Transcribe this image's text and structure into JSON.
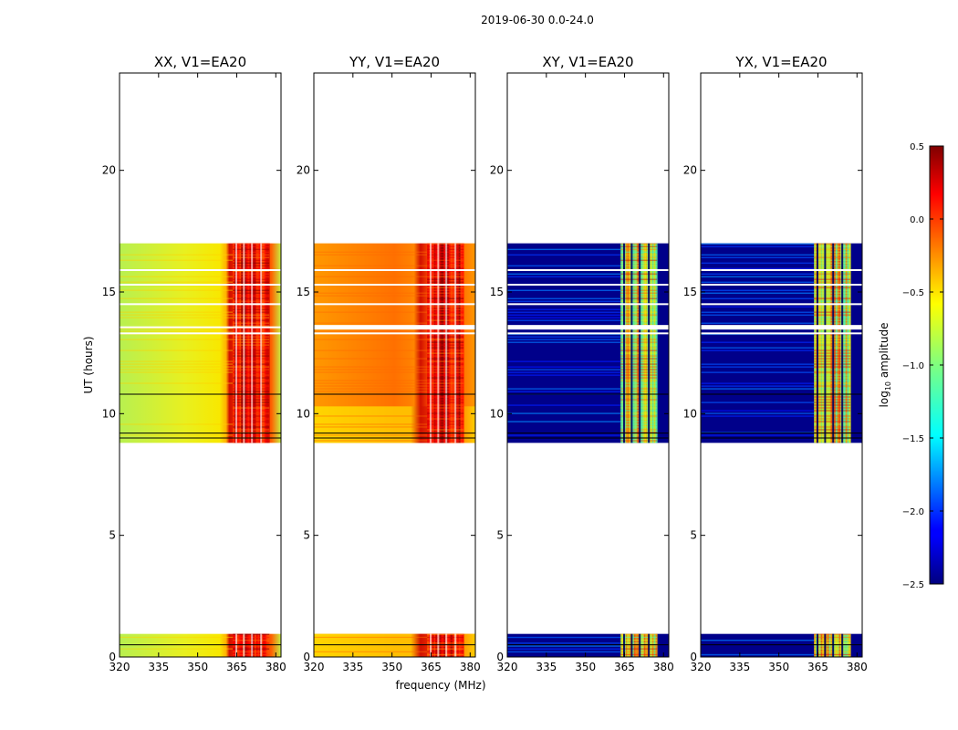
{
  "figure": {
    "suptitle": "2019-06-30 0.0-24.0"
  },
  "chart_data": {
    "type": "heatmap",
    "xlabel": "frequency (MHz)",
    "ylabel": "UT (hours)",
    "xlim": [
      320,
      382
    ],
    "ylim": [
      0,
      24
    ],
    "x_ticks": [
      "320",
      "335",
      "350",
      "365",
      "380"
    ],
    "y_ticks": [
      "0",
      "5",
      "10",
      "15",
      "20"
    ],
    "panels": [
      {
        "title": "XX, V1=EA20",
        "mode": "parallel",
        "base_color": "#c8f03c",
        "band_color": "#cc0000"
      },
      {
        "title": "YY, V1=EA20",
        "mode": "parallel2",
        "base_color": "#ff8c00",
        "band_color": "#b40000"
      },
      {
        "title": "XY, V1=EA20",
        "mode": "cross",
        "base_color": "#00008a",
        "band_color": "#7fffb0"
      },
      {
        "title": "YX, V1=EA20",
        "mode": "cross",
        "base_color": "#00008a",
        "band_color": "#7fffb0"
      }
    ],
    "data_segments_hours": [
      [
        0.0,
        0.95
      ],
      [
        8.8,
        17.0
      ]
    ],
    "flag_lines_hours": [
      0.5,
      9.0,
      9.2,
      10.8
    ],
    "gap_lines_hours": [
      13.3,
      13.55,
      14.5,
      15.3,
      15.9
    ],
    "hot_band_mhz": [
      363.5,
      381
    ],
    "colorbar": {
      "label": "log10 amplitude",
      "label_prefix": "log",
      "label_sub": "10",
      "label_suffix": " amplitude",
      "range": [
        -2.5,
        0.5
      ],
      "ticks": [
        "0.5",
        "0.0",
        "−0.5",
        "−1.0",
        "−1.5",
        "−2.0",
        "−2.5"
      ],
      "tick_values": [
        0.5,
        0.0,
        -0.5,
        -1.0,
        -1.5,
        -2.0,
        -2.5
      ]
    }
  }
}
